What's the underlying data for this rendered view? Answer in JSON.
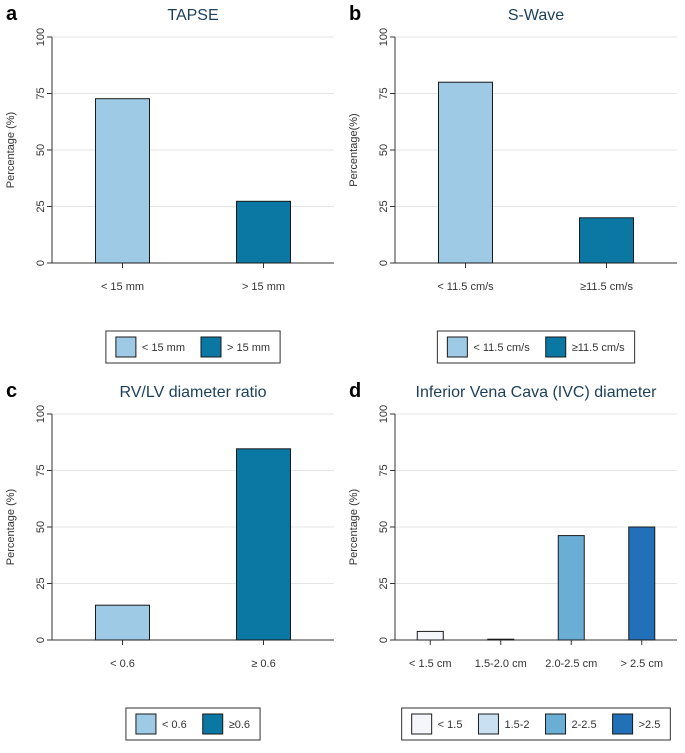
{
  "chart_data": [
    {
      "panel": "a",
      "type": "bar",
      "title": "TAPSE",
      "ylabel": "Percentage (%)",
      "ylim": [
        0,
        100
      ],
      "yticks": [
        0,
        25,
        50,
        75,
        100
      ],
      "categories": [
        "< 15 mm",
        "> 15 mm"
      ],
      "values": [
        72.7,
        27.3
      ],
      "colors": [
        "#9ecae6",
        "#0b77a3"
      ],
      "legend": [
        "< 15 mm",
        "> 15 mm"
      ]
    },
    {
      "panel": "b",
      "type": "bar",
      "title": "S-Wave",
      "ylabel": "Percentage(%)",
      "ylim": [
        0,
        100
      ],
      "yticks": [
        0,
        25,
        50,
        75,
        100
      ],
      "categories": [
        "< 11.5 cm/s",
        "≥11.5 cm/s"
      ],
      "values": [
        80,
        20
      ],
      "colors": [
        "#9ecae6",
        "#0b77a3"
      ],
      "legend": [
        "< 11.5 cm/s",
        "≥11.5 cm/s"
      ]
    },
    {
      "panel": "c",
      "type": "bar",
      "title": "RV/LV diameter ratio",
      "ylabel": "Percentage (%)",
      "ylim": [
        0,
        100
      ],
      "yticks": [
        0,
        25,
        50,
        75,
        100
      ],
      "categories": [
        "< 0.6",
        "≥ 0.6"
      ],
      "values": [
        15.4,
        84.6
      ],
      "colors": [
        "#9ecae6",
        "#0b77a3"
      ],
      "legend": [
        "< 0.6",
        "≥0.6"
      ]
    },
    {
      "panel": "d",
      "type": "bar",
      "title": "Inferior Vena Cava (IVC) diameter",
      "ylabel": "Percentage (%)",
      "ylim": [
        0,
        100
      ],
      "yticks": [
        0,
        25,
        50,
        75,
        100
      ],
      "categories": [
        "< 1.5 cm",
        "1.5-2.0 cm",
        "2.0-2.5 cm",
        "> 2.5 cm"
      ],
      "values": [
        3.8,
        0,
        46.2,
        50
      ],
      "colors": [
        "#f4f6fb",
        "#c8e0f2",
        "#6aaed6",
        "#2170b8"
      ],
      "legend": [
        "< 1.5",
        "1.5-2",
        "2-2.5",
        ">2.5"
      ]
    }
  ]
}
